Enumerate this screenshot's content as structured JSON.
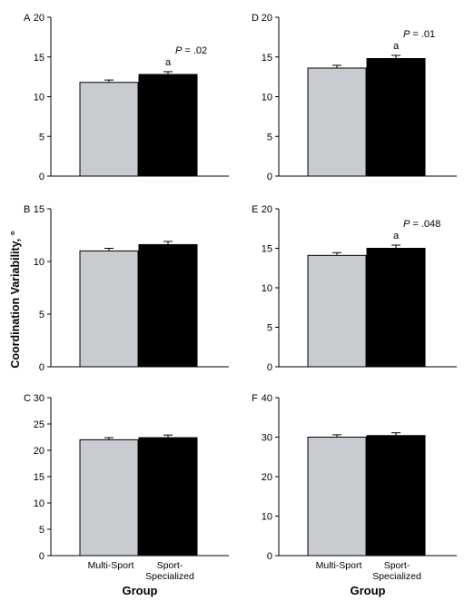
{
  "figure": {
    "ylabel": "Coordination Variability, °",
    "xlabel": "Group"
  },
  "chart_data": [
    {
      "type": "bar",
      "panel": "A",
      "categories": [
        "Multi-Sport",
        "Sport-Specialized"
      ],
      "values": [
        11.8,
        12.8
      ],
      "errors": [
        0.3,
        0.35
      ],
      "ylim": [
        0,
        20
      ],
      "yticks": [
        0,
        5,
        10,
        15,
        20
      ],
      "colors": [
        "#c8cbd0",
        "#000000"
      ],
      "annotation": {
        "letter": "a",
        "p_label": "P",
        "p_value": " = .02"
      }
    },
    {
      "type": "bar",
      "panel": "B",
      "categories": [
        "Multi-Sport",
        "Sport-Specialized"
      ],
      "values": [
        11.0,
        11.6
      ],
      "errors": [
        0.25,
        0.3
      ],
      "ylim": [
        0,
        15
      ],
      "yticks": [
        0,
        5,
        10,
        15
      ],
      "colors": [
        "#c8cbd0",
        "#000000"
      ]
    },
    {
      "type": "bar",
      "panel": "C",
      "categories": [
        "Multi-Sport",
        "Sport-Specialized"
      ],
      "values": [
        22.0,
        22.4
      ],
      "errors": [
        0.4,
        0.5
      ],
      "ylim": [
        0,
        30
      ],
      "yticks": [
        0,
        5,
        10,
        15,
        20,
        25,
        30
      ],
      "colors": [
        "#c8cbd0",
        "#000000"
      ]
    },
    {
      "type": "bar",
      "panel": "D",
      "categories": [
        "Multi-Sport",
        "Sport-Specialized"
      ],
      "values": [
        13.6,
        14.8
      ],
      "errors": [
        0.35,
        0.4
      ],
      "ylim": [
        0,
        20
      ],
      "yticks": [
        0,
        5,
        10,
        15,
        20
      ],
      "colors": [
        "#c8cbd0",
        "#000000"
      ],
      "annotation": {
        "letter": "a",
        "p_label": "P",
        "p_value": " = .01"
      }
    },
    {
      "type": "bar",
      "panel": "E",
      "categories": [
        "Multi-Sport",
        "Sport-Specialized"
      ],
      "values": [
        14.1,
        15.0
      ],
      "errors": [
        0.35,
        0.4
      ],
      "ylim": [
        0,
        20
      ],
      "yticks": [
        0,
        5,
        10,
        15,
        20
      ],
      "colors": [
        "#c8cbd0",
        "#000000"
      ],
      "annotation": {
        "letter": "a",
        "p_label": "P",
        "p_value": " = .048"
      }
    },
    {
      "type": "bar",
      "panel": "F",
      "categories": [
        "Multi-Sport",
        "Sport-Specialized"
      ],
      "values": [
        30.0,
        30.4
      ],
      "errors": [
        0.6,
        0.7
      ],
      "ylim": [
        0,
        40
      ],
      "yticks": [
        0,
        10,
        20,
        30,
        40
      ],
      "colors": [
        "#c8cbd0",
        "#000000"
      ]
    }
  ],
  "xcats": {
    "left": {
      "line1": "Multi-Sport",
      "line2": "",
      "line3": "Sport-",
      "line4": "Specialized"
    },
    "right": {
      "line1": "Multi-Sport",
      "line2": "",
      "line3": "Sport-",
      "line4": "Specialized"
    }
  }
}
